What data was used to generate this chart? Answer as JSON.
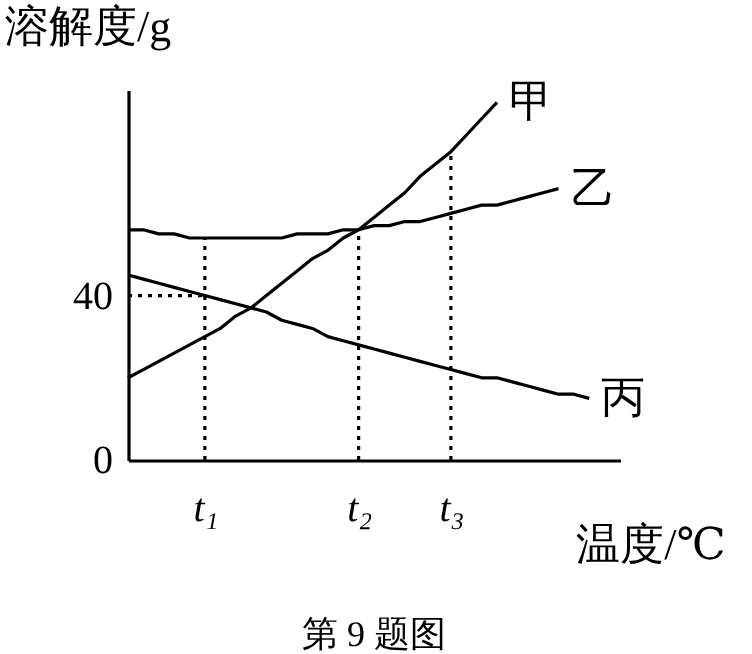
{
  "chart_data": {
    "type": "line",
    "ylabel": "溶解度/g",
    "xlabel": "温度/℃",
    "annotations": [
      "第 9 题图"
    ],
    "categories": [
      null,
      null,
      null,
      null,
      null,
      "t₁",
      null,
      null,
      null,
      null,
      null,
      null,
      null,
      null,
      null,
      "t₂",
      null,
      null,
      null,
      null,
      null,
      "t₃",
      null,
      null,
      null,
      null,
      null,
      null,
      null,
      null,
      null,
      null,
      null
    ],
    "ylim": [
      0,
      90
    ],
    "yticks": [
      0,
      40
    ],
    "marker": "none",
    "series": [
      {
        "name": "甲",
        "color": "#000000",
        "values": [
          20,
          22,
          24,
          26,
          28,
          30,
          32,
          35,
          37,
          40,
          43,
          46,
          49,
          51,
          54,
          56,
          59,
          62,
          65,
          69,
          72,
          75,
          79,
          83,
          87,
          null,
          null,
          null,
          null,
          null,
          null,
          null,
          null
        ]
      },
      {
        "name": "乙",
        "color": "#000000",
        "values": [
          56,
          56,
          55,
          55,
          54,
          54,
          54,
          54,
          54,
          54,
          54,
          55,
          55,
          55,
          56,
          56,
          57,
          57,
          58,
          58,
          59,
          60,
          61,
          62,
          62,
          63,
          64,
          65,
          66,
          null,
          null,
          null,
          null
        ]
      },
      {
        "name": "丙",
        "color": "#000000",
        "values": [
          45,
          44,
          43,
          42,
          41,
          40,
          39,
          38,
          37,
          36,
          34,
          33,
          32,
          30,
          29,
          28,
          27,
          26,
          25,
          24,
          23,
          22,
          21,
          20,
          20,
          19,
          18,
          17,
          16,
          16,
          15,
          null,
          null
        ]
      },
      {
        "color": "#000000",
        "line_style": "dotted",
        "values": [
          40,
          40,
          40,
          40,
          40,
          40,
          null,
          null,
          null,
          null,
          null,
          null,
          null,
          null,
          null,
          null,
          null,
          null,
          null,
          null,
          null,
          null,
          null,
          null,
          null,
          null,
          null,
          null,
          null,
          null,
          null,
          null,
          null
        ]
      },
      {
        "color": "#000000",
        "line_style": "dotted",
        "x": [
          "t₁",
          "t₁"
        ],
        "values": [
          0,
          54
        ]
      },
      {
        "color": "#000000",
        "line_style": "dotted",
        "x": [
          "t₂",
          "t₂"
        ],
        "values": [
          0,
          56
        ]
      },
      {
        "color": "#000000",
        "line_style": "dotted",
        "x": [
          "t₃",
          "t₃"
        ],
        "values": [
          0,
          75
        ]
      }
    ]
  }
}
